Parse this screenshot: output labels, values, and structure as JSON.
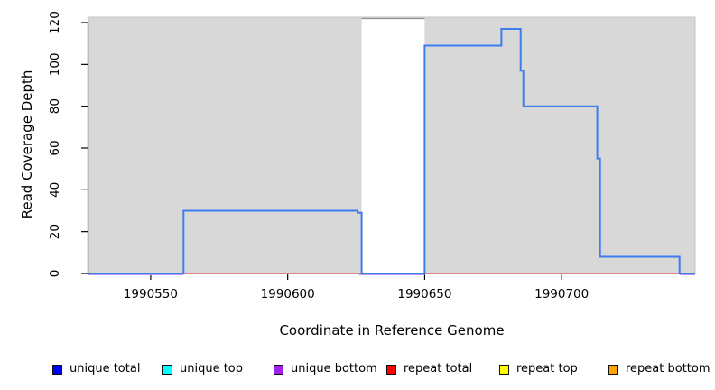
{
  "chart_data": {
    "type": "step-line",
    "title": "",
    "xlabel": "Coordinate in Reference Genome",
    "ylabel": "Read Coverage Depth",
    "xlim": [
      1990527.3,
      1990748.7
    ],
    "ylim": [
      0,
      122.6
    ],
    "x_ticks": [
      1990550,
      1990600,
      1990650,
      1990700
    ],
    "y_ticks": [
      0,
      20,
      40,
      60,
      80,
      100,
      120
    ],
    "grid": "off",
    "legend_position": "bottom",
    "background": {
      "plot_bg": "#d8d8d8",
      "plot_border": "#c6c6c6"
    },
    "gap_band": {
      "x1": 1990627,
      "x2": 1990650,
      "color": "#ffffff",
      "top_border": "#8e8e8e"
    },
    "series": [
      {
        "name": "unique bottom",
        "color": "#b49df0",
        "width": 1.2,
        "segments": [
          [
            [
              1990527.3,
              0
            ],
            [
              1990562,
              0
            ]
          ],
          [
            [
              1990626,
              0
            ],
            [
              1990650,
              0
            ]
          ],
          [
            [
              1990743,
              0
            ],
            [
              1990748.7,
              0
            ]
          ]
        ]
      },
      {
        "name": "repeat total",
        "color": "#dc5168",
        "width": 1.2,
        "points": [
          [
            1990527.3,
            0
          ],
          [
            1990748.7,
            0
          ]
        ]
      },
      {
        "name": "unique total",
        "color": "#3e7cf0",
        "width": 2,
        "points": [
          [
            1990527.3,
            0
          ],
          [
            1990562,
            0
          ],
          [
            1990562,
            30
          ],
          [
            1990625.5,
            30
          ],
          [
            1990625.5,
            29
          ],
          [
            1990627,
            29
          ],
          [
            1990627,
            0
          ],
          [
            1990650,
            0
          ],
          [
            1990650,
            109
          ],
          [
            1990678,
            109
          ],
          [
            1990678,
            117
          ],
          [
            1990685,
            117
          ],
          [
            1990685,
            97
          ],
          [
            1990686,
            97
          ],
          [
            1990686,
            80
          ],
          [
            1990713,
            80
          ],
          [
            1990713,
            55
          ],
          [
            1990714,
            55
          ],
          [
            1990714,
            8
          ],
          [
            1990743,
            8
          ],
          [
            1990743,
            0
          ],
          [
            1990748.7,
            0
          ]
        ]
      }
    ],
    "legend": [
      {
        "label": "unique total",
        "color": "#0000ff"
      },
      {
        "label": "unique top",
        "color": "#00ffff"
      },
      {
        "label": "unique bottom",
        "color": "#a020f0"
      },
      {
        "label": "repeat total",
        "color": "#ff0000"
      },
      {
        "label": "repeat top",
        "color": "#ffff00"
      },
      {
        "label": "repeat bottom",
        "color": "#ffa500"
      }
    ]
  }
}
